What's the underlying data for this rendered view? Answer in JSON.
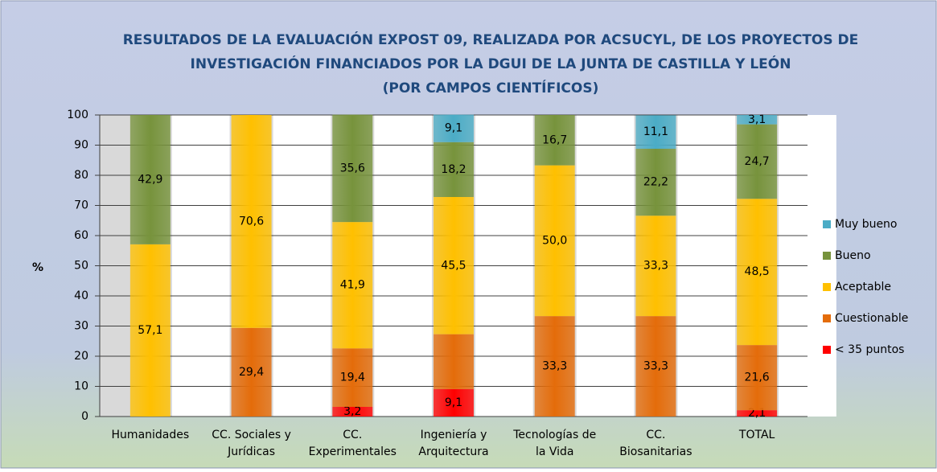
{
  "chart_data": {
    "type": "stacked_bar",
    "title": [
      "RESULTADOS DE LA EVALUACIÓN  EXPOST 09, REALIZADA POR ACSUCYL, DE LOS PROYECTOS DE",
      "INVESTIGACIÓN  FINANCIADOS POR LA DGUI DE LA JUNTA DE CASTILLA Y LEÓN",
      "(POR CAMPOS CIENTÍFICOS)"
    ],
    "y_label": "%",
    "categories": [
      [
        "Humanidades"
      ],
      [
        "CC. Sociales y",
        "Jurídicas"
      ],
      [
        "CC.",
        "Experimentales"
      ],
      [
        "Ingeniería y",
        "Arquitectura"
      ],
      [
        "Tecnologías de",
        "la Vida"
      ],
      [
        "CC.",
        "Biosanitarias"
      ],
      [
        "TOTAL"
      ]
    ],
    "series": [
      {
        "name": "< 35 puntos",
        "color": "#ff0000",
        "values": [
          null,
          null,
          3.2,
          9.1,
          null,
          null,
          2.1
        ],
        "value_labels": [
          null,
          null,
          "3,2",
          "9,1",
          null,
          null,
          "2,1"
        ]
      },
      {
        "name": "Cuestionable",
        "color": "#e46c0a",
        "values": [
          null,
          29.4,
          19.4,
          18.2,
          33.3,
          33.3,
          21.6
        ],
        "value_labels": [
          null,
          "29,4",
          "19,4",
          null,
          "33,3",
          "33,3",
          "21,6"
        ]
      },
      {
        "name": "Aceptable",
        "color": "#ffc000",
        "values": [
          57.1,
          70.6,
          41.9,
          45.5,
          50.0,
          33.3,
          48.5
        ],
        "value_labels": [
          "57,1",
          "70,6",
          "41,9",
          "45,5",
          "50,0",
          "33,3",
          "48,5"
        ]
      },
      {
        "name": "Bueno",
        "color": "#77933c",
        "values": [
          42.9,
          null,
          35.6,
          18.2,
          16.7,
          22.2,
          24.7
        ],
        "value_labels": [
          "42,9",
          null,
          "35,6",
          "18,2",
          "16,7",
          "22,2",
          "24,7"
        ]
      },
      {
        "name": "Muy bueno",
        "color": "#4bacc6",
        "values": [
          null,
          null,
          null,
          9.1,
          null,
          11.1,
          3.1
        ],
        "value_labels": [
          null,
          null,
          null,
          "9,1",
          null,
          "11,1",
          "3,1"
        ]
      }
    ],
    "ylim": [
      0,
      100
    ],
    "yticks": [
      0,
      10,
      20,
      30,
      40,
      50,
      60,
      70,
      80,
      90,
      100
    ],
    "grid": true,
    "legend": "right"
  }
}
